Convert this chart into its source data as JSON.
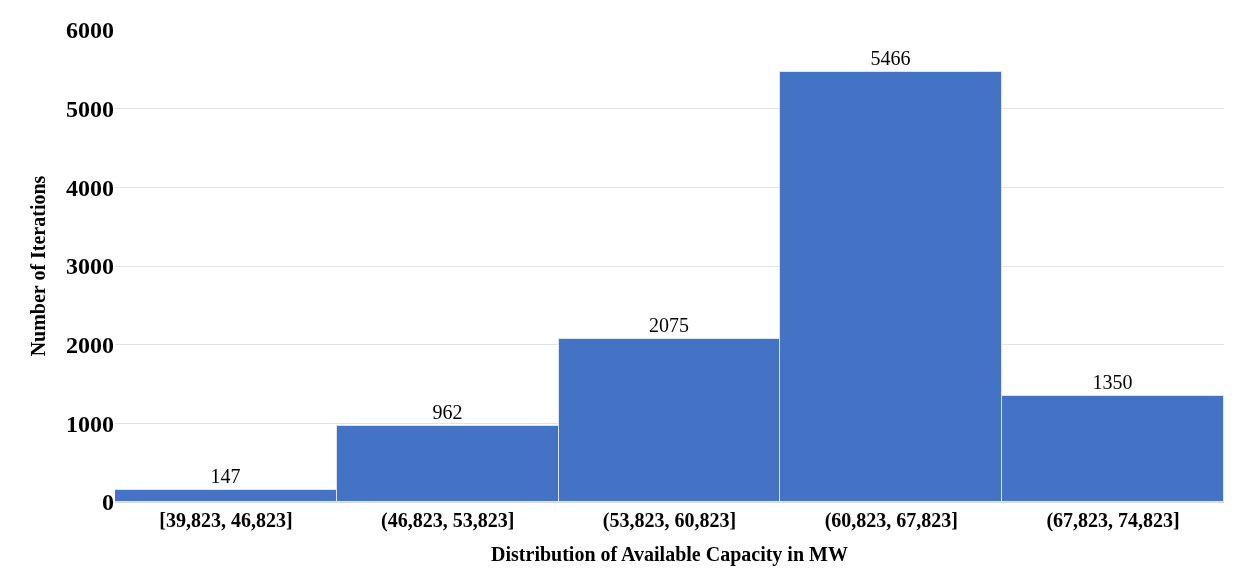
{
  "chart_data": {
    "type": "bar",
    "xlabel": "Distribution of Available Capacity in MW",
    "ylabel": "Number of Iterations",
    "categories": [
      "[39,823, 46,823]",
      "(46,823, 53,823]",
      "(53,823, 60,823]",
      "(60,823, 67,823]",
      "(67,823, 74,823]"
    ],
    "values": [
      147,
      962,
      2075,
      5466,
      1350
    ],
    "color": "#4472c4",
    "ylim": [
      0,
      6000
    ],
    "yticks": [
      0,
      1000,
      2000,
      3000,
      4000,
      5000,
      6000
    ],
    "grid": "y",
    "data_labels": true,
    "legend": false
  }
}
